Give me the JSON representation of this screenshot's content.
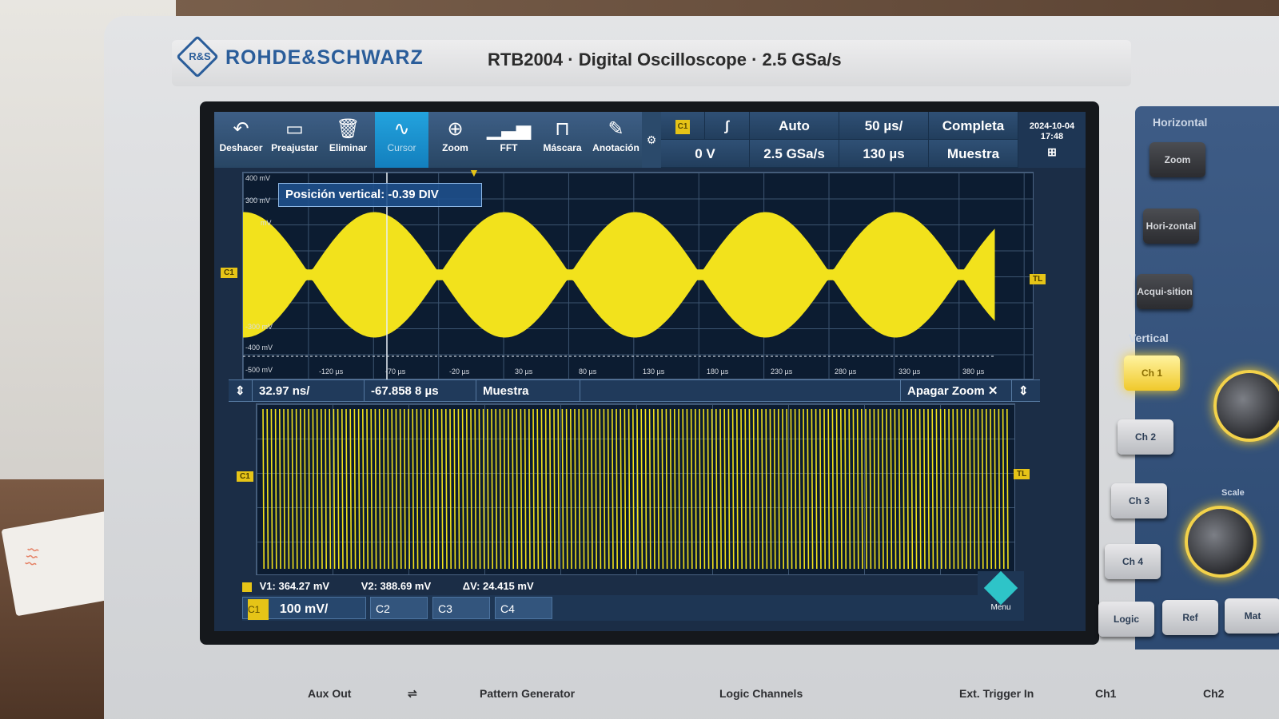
{
  "brand": {
    "logo_letters": "R&S",
    "name": "ROHDE&SCHWARZ",
    "model_line": "RTB2004 · Digital Oscilloscope · 2.5 GSa/s"
  },
  "toolbar": {
    "buttons": [
      {
        "label": "Deshacer",
        "icon": "undo-icon"
      },
      {
        "label": "Preajustar",
        "icon": "preset-icon"
      },
      {
        "label": "Eliminar",
        "icon": "trash-icon"
      },
      {
        "label": "Cursor",
        "icon": "cursor-wave-icon",
        "active": true
      },
      {
        "label": "Zoom",
        "icon": "zoom-icon"
      },
      {
        "label": "FFT",
        "icon": "fft-icon"
      },
      {
        "label": "Máscara",
        "icon": "mask-icon"
      },
      {
        "label": "Anotación",
        "icon": "pencil-icon"
      }
    ]
  },
  "trigger": {
    "source": "C1",
    "level": "0 V",
    "mode": "Auto",
    "sample_rate": "2.5 GSa/s",
    "timebase": "50 µs/",
    "position": "130 µs",
    "record": "Completa",
    "acquisition": "Muestra"
  },
  "datetime": {
    "date": "2024-10-04",
    "time": "17:48"
  },
  "main_grid": {
    "tooltip": "Posición vertical: -0.39 DIV",
    "y_labels": [
      "400 mV",
      "300 mV",
      "mV",
      "-300 mV",
      "-400 mV",
      "-500 mV"
    ],
    "x_labels": [
      "-120 µs",
      "-70 µs",
      "-20 µs",
      "30 µs",
      "80 µs",
      "130 µs",
      "180 µs",
      "230 µs",
      "280 µs",
      "330 µs",
      "380 µs"
    ],
    "marker_left": "C1",
    "marker_right": "TL"
  },
  "zoom_bar": {
    "timebase": "32.97 ns/",
    "position": "-67.858 8 µs",
    "mode": "Muestra",
    "close_label": "Apagar Zoom"
  },
  "zoom_grid": {
    "marker_left": "C1",
    "marker_right": "TL"
  },
  "cursors": {
    "v1": "V1: 364.27 mV",
    "v2": "V2: 388.69 mV",
    "delta": "ΔV: 24.415 mV"
  },
  "channels": {
    "c1": "C1",
    "c1_scale": "100 mV/",
    "c2": "C2",
    "c3": "C3",
    "c4": "C4",
    "menu": "Menu"
  },
  "panel": {
    "horizontal_title": "Horizontal",
    "vertical_title": "Vertical",
    "scale_label": "Scale",
    "zoom": "Zoom",
    "horizontal": "Hori-zontal",
    "acquisition": "Acqui-sition",
    "ch1": "Ch 1",
    "ch2": "Ch 2",
    "ch3": "Ch 3",
    "ch4": "Ch 4",
    "logic": "Logic",
    "ref": "Ref",
    "math": "Mat"
  },
  "front_labels": {
    "aux_out": "Aux Out",
    "pattern_gen": "Pattern Generator",
    "logic_channels": "Logic Channels",
    "ext_trigger": "Ext. Trigger In",
    "ch1": "Ch1",
    "ch2": "Ch2"
  },
  "colors": {
    "trace": "#f2e21c",
    "accent": "#1597d6",
    "screen": "#0c1c31"
  }
}
